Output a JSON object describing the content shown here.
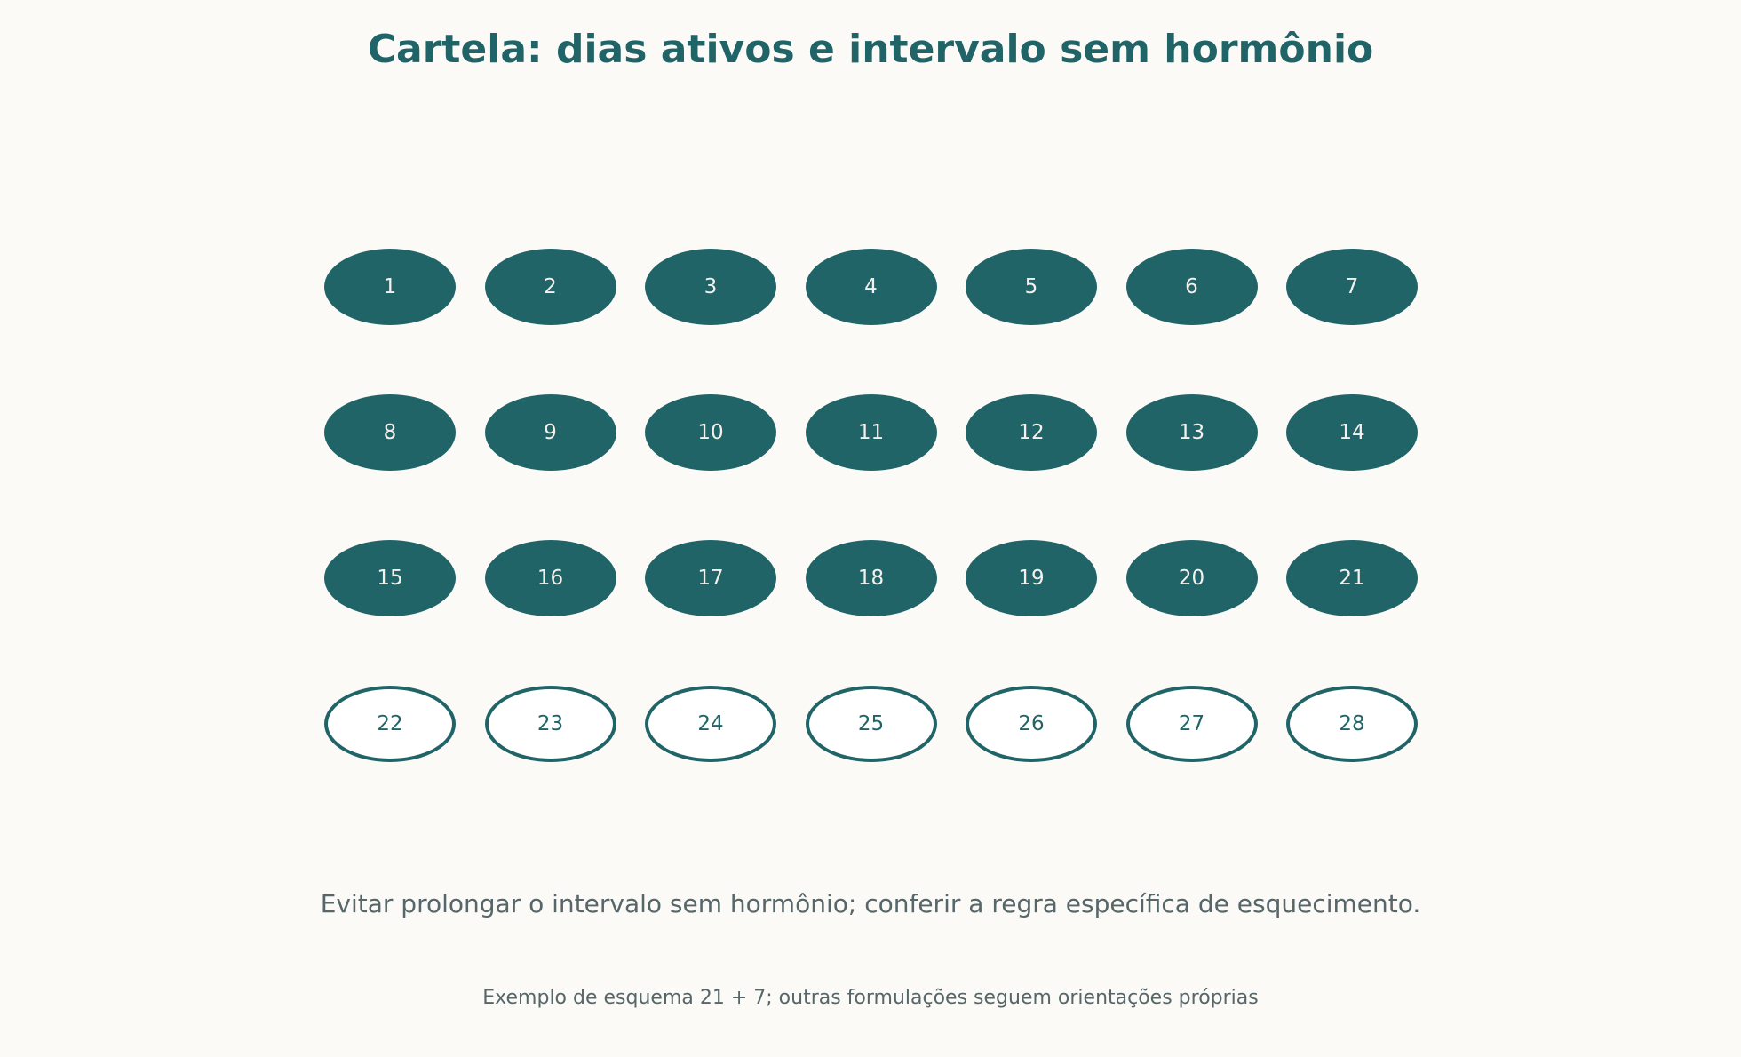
{
  "title": "Cartela: dias ativos e intervalo sem hormônio",
  "pills": [
    {
      "label": "1",
      "type": "active"
    },
    {
      "label": "2",
      "type": "active"
    },
    {
      "label": "3",
      "type": "active"
    },
    {
      "label": "4",
      "type": "active"
    },
    {
      "label": "5",
      "type": "active"
    },
    {
      "label": "6",
      "type": "active"
    },
    {
      "label": "7",
      "type": "active"
    },
    {
      "label": "8",
      "type": "active"
    },
    {
      "label": "9",
      "type": "active"
    },
    {
      "label": "10",
      "type": "active"
    },
    {
      "label": "11",
      "type": "active"
    },
    {
      "label": "12",
      "type": "active"
    },
    {
      "label": "13",
      "type": "active"
    },
    {
      "label": "14",
      "type": "active"
    },
    {
      "label": "15",
      "type": "active"
    },
    {
      "label": "16",
      "type": "active"
    },
    {
      "label": "17",
      "type": "active"
    },
    {
      "label": "18",
      "type": "active"
    },
    {
      "label": "19",
      "type": "active"
    },
    {
      "label": "20",
      "type": "active"
    },
    {
      "label": "21",
      "type": "active"
    },
    {
      "label": "22",
      "type": "break"
    },
    {
      "label": "23",
      "type": "break"
    },
    {
      "label": "24",
      "type": "break"
    },
    {
      "label": "25",
      "type": "break"
    },
    {
      "label": "26",
      "type": "break"
    },
    {
      "label": "27",
      "type": "break"
    },
    {
      "label": "28",
      "type": "break"
    }
  ],
  "note": "Evitar prolongar o intervalo sem hormônio; conferir a regra específica de esquecimento.",
  "footnote": "Exemplo de esquema 21 + 7; outras formulações seguem orientações próprias",
  "colors": {
    "active_fill": "#216468",
    "break_outline": "#216468",
    "background": "#fbfaf7",
    "text_muted": "#566669"
  }
}
